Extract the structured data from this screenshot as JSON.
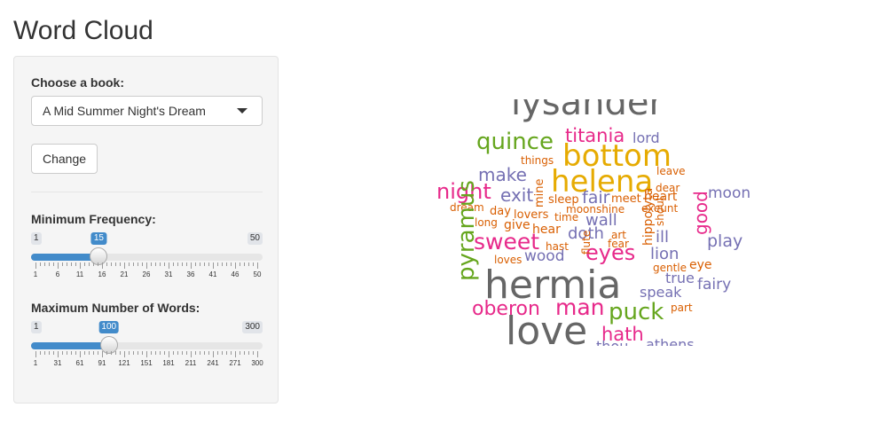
{
  "app": {
    "title": "Word Cloud"
  },
  "sidebar": {
    "book_label": "Choose a book:",
    "book_selected": "A Mid Summer Night's Dream",
    "change_button": "Change",
    "min_freq": {
      "label": "Minimum Frequency:",
      "min": 1,
      "max": 50,
      "value": 15,
      "ticks": [
        "1",
        "6",
        "11",
        "16",
        "21",
        "26",
        "31",
        "36",
        "41",
        "46",
        "50"
      ]
    },
    "max_words": {
      "label": "Maximum Number of Words:",
      "min": 1,
      "max": 300,
      "value": 100,
      "ticks": [
        "1",
        "31",
        "61",
        "91",
        "121",
        "151",
        "181",
        "211",
        "241",
        "271",
        "300"
      ]
    }
  },
  "colors": {
    "slider_accent": "#428bca",
    "gray": "#666666",
    "green": "#66a61e",
    "pink": "#e7298a",
    "purple": "#7570b3",
    "orange": "#d95f02",
    "yellow": "#e6ab02"
  },
  "word_cloud": {
    "words": [
      {
        "text": "lysander",
        "color": "#666666"
      },
      {
        "text": "quince",
        "color": "#66a61e"
      },
      {
        "text": "titania",
        "color": "#e7298a"
      },
      {
        "text": "lord",
        "color": "#7570b3"
      },
      {
        "text": "bottom",
        "color": "#e6ab02"
      },
      {
        "text": "things",
        "color": "#d95f02"
      },
      {
        "text": "make",
        "color": "#7570b3"
      },
      {
        "text": "leave",
        "color": "#d95f02"
      },
      {
        "text": "helena",
        "color": "#e6ab02"
      },
      {
        "text": "night",
        "color": "#e7298a"
      },
      {
        "text": "exit",
        "color": "#7570b3"
      },
      {
        "text": "mine",
        "color": "#d95f02"
      },
      {
        "text": "dear",
        "color": "#d95f02"
      },
      {
        "text": "moon",
        "color": "#7570b3"
      },
      {
        "text": "sleep",
        "color": "#d95f02"
      },
      {
        "text": "fair",
        "color": "#7570b3"
      },
      {
        "text": "meet",
        "color": "#d95f02"
      },
      {
        "text": "heart",
        "color": "#d95f02"
      },
      {
        "text": "dream",
        "color": "#d95f02"
      },
      {
        "text": "moonshine",
        "color": "#d95f02"
      },
      {
        "text": "exeunt",
        "color": "#d95f02"
      },
      {
        "text": "day",
        "color": "#d95f02"
      },
      {
        "text": "lovers",
        "color": "#d95f02"
      },
      {
        "text": "time",
        "color": "#d95f02"
      },
      {
        "text": "good",
        "color": "#e7298a"
      },
      {
        "text": "long",
        "color": "#d95f02"
      },
      {
        "text": "give",
        "color": "#d95f02"
      },
      {
        "text": "wall",
        "color": "#7570b3"
      },
      {
        "text": "hippolyta",
        "color": "#d95f02"
      },
      {
        "text": "pyramus",
        "color": "#66a61e"
      },
      {
        "text": "hear",
        "color": "#d95f02"
      },
      {
        "text": "sweet",
        "color": "#e7298a"
      },
      {
        "text": "doth",
        "color": "#7570b3"
      },
      {
        "text": "art",
        "color": "#d95f02"
      },
      {
        "text": "shout",
        "color": "#d95f02"
      },
      {
        "text": "ill",
        "color": "#7570b3"
      },
      {
        "text": "play",
        "color": "#7570b3"
      },
      {
        "text": "hast",
        "color": "#d95f02"
      },
      {
        "text": "fear",
        "color": "#d95f02"
      },
      {
        "text": "eyes",
        "color": "#e7298a"
      },
      {
        "text": "lion",
        "color": "#7570b3"
      },
      {
        "text": "loves",
        "color": "#d95f02"
      },
      {
        "text": "wood",
        "color": "#7570b3"
      },
      {
        "text": "flute",
        "color": "#d95f02"
      },
      {
        "text": "gentle",
        "color": "#d95f02"
      },
      {
        "text": "eye",
        "color": "#d95f02"
      },
      {
        "text": "true",
        "color": "#7570b3"
      },
      {
        "text": "fairy",
        "color": "#7570b3"
      },
      {
        "text": "hermia",
        "color": "#666666"
      },
      {
        "text": "speak",
        "color": "#7570b3"
      },
      {
        "text": "oberon",
        "color": "#e7298a"
      },
      {
        "text": "man",
        "color": "#e7298a"
      },
      {
        "text": "puck",
        "color": "#66a61e"
      },
      {
        "text": "part",
        "color": "#d95f02"
      },
      {
        "text": "love",
        "color": "#666666"
      },
      {
        "text": "hath",
        "color": "#e7298a"
      },
      {
        "text": "athens",
        "color": "#7570b3"
      },
      {
        "text": "thou",
        "color": "#7570b3"
      }
    ]
  }
}
